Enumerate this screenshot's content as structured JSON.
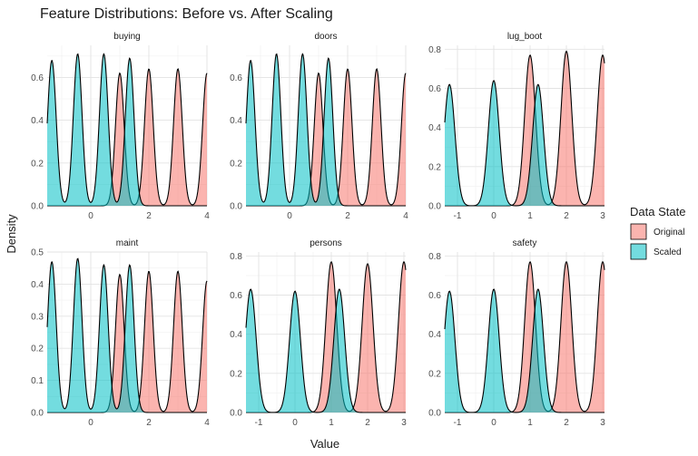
{
  "chart_data": {
    "type": "area",
    "title": "Feature Distributions: Before vs. After Scaling",
    "xlabel": "Value",
    "ylabel": "Density",
    "grid": true,
    "legend": {
      "title": "Data State",
      "position": "right",
      "entries": [
        "Original",
        "Scaled"
      ]
    },
    "colors": {
      "Original": "#F8766D",
      "Scaled": "#00BFC4",
      "outline": "#000000"
    },
    "panels": [
      {
        "name": "buying",
        "xlim": [
          -1.5,
          4
        ],
        "xticks": [
          0,
          2,
          4
        ],
        "ylim": [
          0,
          0.75
        ],
        "yticks": [
          0.0,
          0.2,
          0.4,
          0.6
        ],
        "series": [
          {
            "name": "Original",
            "peaks": [
              {
                "center": 1,
                "height": 0.62
              },
              {
                "center": 2,
                "height": 0.64
              },
              {
                "center": 3,
                "height": 0.64
              },
              {
                "center": 4,
                "height": 0.62
              }
            ]
          },
          {
            "name": "Scaled",
            "peaks": [
              {
                "center": -1.34,
                "height": 0.68
              },
              {
                "center": -0.45,
                "height": 0.71
              },
              {
                "center": 0.45,
                "height": 0.71
              },
              {
                "center": 1.34,
                "height": 0.69
              }
            ]
          }
        ]
      },
      {
        "name": "doors",
        "xlim": [
          -1.5,
          4
        ],
        "xticks": [
          0,
          2,
          4
        ],
        "ylim": [
          0,
          0.75
        ],
        "yticks": [
          0.0,
          0.2,
          0.4,
          0.6
        ],
        "series": [
          {
            "name": "Original",
            "peaks": [
              {
                "center": 1,
                "height": 0.62
              },
              {
                "center": 2,
                "height": 0.64
              },
              {
                "center": 3,
                "height": 0.64
              },
              {
                "center": 4,
                "height": 0.62
              }
            ]
          },
          {
            "name": "Scaled",
            "peaks": [
              {
                "center": -1.34,
                "height": 0.68
              },
              {
                "center": -0.45,
                "height": 0.71
              },
              {
                "center": 0.45,
                "height": 0.71
              },
              {
                "center": 1.34,
                "height": 0.69
              }
            ]
          }
        ]
      },
      {
        "name": "lug_boot",
        "xlim": [
          -1.35,
          3.05
        ],
        "xticks": [
          -1,
          0,
          1,
          2,
          3
        ],
        "ylim": [
          0,
          0.82
        ],
        "yticks": [
          0.0,
          0.2,
          0.4,
          0.6,
          0.8
        ],
        "series": [
          {
            "name": "Original",
            "peaks": [
              {
                "center": 1,
                "height": 0.77
              },
              {
                "center": 2,
                "height": 0.79
              },
              {
                "center": 3,
                "height": 0.77
              }
            ]
          },
          {
            "name": "Scaled",
            "peaks": [
              {
                "center": -1.22,
                "height": 0.62
              },
              {
                "center": 0,
                "height": 0.64
              },
              {
                "center": 1.22,
                "height": 0.62
              }
            ]
          }
        ]
      },
      {
        "name": "maint",
        "xlim": [
          -1.5,
          4
        ],
        "xticks": [
          0,
          2,
          4
        ],
        "ylim": [
          0,
          0.5
        ],
        "yticks": [
          0.0,
          0.1,
          0.2,
          0.3,
          0.4,
          0.5
        ],
        "series": [
          {
            "name": "Original",
            "peaks": [
              {
                "center": 1,
                "height": 0.43
              },
              {
                "center": 2,
                "height": 0.44
              },
              {
                "center": 3,
                "height": 0.44
              },
              {
                "center": 4,
                "height": 0.41
              }
            ]
          },
          {
            "name": "Scaled",
            "peaks": [
              {
                "center": -1.34,
                "height": 0.47
              },
              {
                "center": -0.45,
                "height": 0.48
              },
              {
                "center": 0.45,
                "height": 0.46
              },
              {
                "center": 1.34,
                "height": 0.46
              }
            ]
          }
        ]
      },
      {
        "name": "persons",
        "xlim": [
          -1.35,
          3.05
        ],
        "xticks": [
          -1,
          0,
          1,
          2,
          3
        ],
        "ylim": [
          0,
          0.82
        ],
        "yticks": [
          0.0,
          0.2,
          0.4,
          0.6,
          0.8
        ],
        "series": [
          {
            "name": "Original",
            "peaks": [
              {
                "center": 1,
                "height": 0.77
              },
              {
                "center": 2,
                "height": 0.76
              },
              {
                "center": 3,
                "height": 0.77
              }
            ]
          },
          {
            "name": "Scaled",
            "peaks": [
              {
                "center": -1.22,
                "height": 0.63
              },
              {
                "center": 0,
                "height": 0.62
              },
              {
                "center": 1.22,
                "height": 0.63
              }
            ]
          }
        ]
      },
      {
        "name": "safety",
        "xlim": [
          -1.35,
          3.05
        ],
        "xticks": [
          -1,
          0,
          1,
          2,
          3
        ],
        "ylim": [
          0,
          0.82
        ],
        "yticks": [
          0.0,
          0.2,
          0.4,
          0.6,
          0.8
        ],
        "series": [
          {
            "name": "Original",
            "peaks": [
              {
                "center": 1,
                "height": 0.77
              },
              {
                "center": 2,
                "height": 0.77
              },
              {
                "center": 3,
                "height": 0.77
              }
            ]
          },
          {
            "name": "Scaled",
            "peaks": [
              {
                "center": -1.22,
                "height": 0.62
              },
              {
                "center": 0,
                "height": 0.63
              },
              {
                "center": 1.22,
                "height": 0.63
              }
            ]
          }
        ]
      }
    ]
  }
}
